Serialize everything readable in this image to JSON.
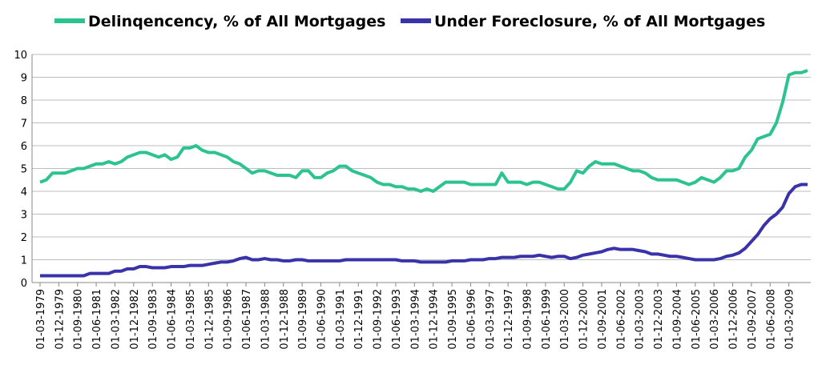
{
  "chart_data": {
    "type": "line",
    "categories": [
      "01-03-1979",
      null,
      null,
      "01-12-1979",
      null,
      null,
      "01-09-1980",
      null,
      null,
      "01-06-1981",
      null,
      null,
      "01-03-1982",
      null,
      null,
      "01-12-1982",
      null,
      null,
      "01-09-1983",
      null,
      null,
      "01-06-1984",
      null,
      null,
      "01-03-1985",
      null,
      null,
      "01-12-1985",
      null,
      null,
      "01-09-1986",
      null,
      null,
      "01-06-1987",
      null,
      null,
      "01-03-1988",
      null,
      null,
      "01-12-1988",
      null,
      null,
      "01-09-1989",
      null,
      null,
      "01-06-1990",
      null,
      null,
      "01-03-1991",
      null,
      null,
      "01-12-1991",
      null,
      null,
      "01-09-1992",
      null,
      null,
      "01-06-1993",
      null,
      null,
      "01-03-1994",
      null,
      null,
      "01-12-1994",
      null,
      null,
      "01-09-1995",
      null,
      null,
      "01-06-1996",
      null,
      null,
      "01-03-1997",
      null,
      null,
      "01-12-1997",
      null,
      null,
      "01-09-1998",
      null,
      null,
      "01-06-1999",
      null,
      null,
      "01-03-2000",
      null,
      null,
      "01-12-2000",
      null,
      null,
      "01-09-2001",
      null,
      null,
      "01-06-2002",
      null,
      null,
      "01-03-2003",
      null,
      null,
      "01-12-2003",
      null,
      null,
      "01-09-2004",
      null,
      null,
      "01-06-2005",
      null,
      null,
      "01-03-2006",
      null,
      null,
      "01-12-2006",
      null,
      null,
      "01-09-2007",
      null,
      null,
      "01-06-2008",
      null,
      null,
      "01-03-2009",
      null,
      null,
      null
    ],
    "series": [
      {
        "name": "Delinqencency, % of All Mortgages",
        "color": "#2dc391",
        "values": [
          4.4,
          4.5,
          4.8,
          4.8,
          4.8,
          4.9,
          5.0,
          5.0,
          5.1,
          5.2,
          5.2,
          5.3,
          5.2,
          5.3,
          5.5,
          5.6,
          5.7,
          5.7,
          5.6,
          5.5,
          5.6,
          5.4,
          5.5,
          5.9,
          5.9,
          6.0,
          5.8,
          5.7,
          5.7,
          5.6,
          5.5,
          5.3,
          5.2,
          5.0,
          4.8,
          4.9,
          4.9,
          4.8,
          4.7,
          4.7,
          4.7,
          4.6,
          4.9,
          4.9,
          4.6,
          4.6,
          4.8,
          4.9,
          5.1,
          5.1,
          4.9,
          4.8,
          4.7,
          4.6,
          4.4,
          4.3,
          4.3,
          4.2,
          4.2,
          4.1,
          4.1,
          4.0,
          4.1,
          4.0,
          4.2,
          4.4,
          4.4,
          4.4,
          4.4,
          4.3,
          4.3,
          4.3,
          4.3,
          4.3,
          4.8,
          4.4,
          4.4,
          4.4,
          4.3,
          4.4,
          4.4,
          4.3,
          4.2,
          4.1,
          4.1,
          4.4,
          4.9,
          4.8,
          5.1,
          5.3,
          5.2,
          5.2,
          5.2,
          5.1,
          5.0,
          4.9,
          4.9,
          4.8,
          4.6,
          4.5,
          4.5,
          4.5,
          4.5,
          4.4,
          4.3,
          4.4,
          4.6,
          4.5,
          4.4,
          4.6,
          4.9,
          4.9,
          5.0,
          5.5,
          5.8,
          6.3,
          6.4,
          6.5,
          7.0,
          7.9,
          9.1,
          9.2,
          9.2,
          9.3
        ]
      },
      {
        "name": "Under Foreclosure, % of All Mortgages",
        "color": "#3932a8",
        "values": [
          0.3,
          0.3,
          0.3,
          0.3,
          0.3,
          0.3,
          0.3,
          0.3,
          0.4,
          0.4,
          0.4,
          0.4,
          0.5,
          0.5,
          0.6,
          0.6,
          0.7,
          0.7,
          0.65,
          0.65,
          0.65,
          0.7,
          0.7,
          0.7,
          0.75,
          0.75,
          0.75,
          0.8,
          0.85,
          0.9,
          0.9,
          0.95,
          1.05,
          1.1,
          1.0,
          1.0,
          1.05,
          1.0,
          1.0,
          0.95,
          0.95,
          1.0,
          1.0,
          0.95,
          0.95,
          0.95,
          0.95,
          0.95,
          0.95,
          1.0,
          1.0,
          1.0,
          1.0,
          1.0,
          1.0,
          1.0,
          1.0,
          1.0,
          0.95,
          0.95,
          0.95,
          0.9,
          0.9,
          0.9,
          0.9,
          0.9,
          0.95,
          0.95,
          0.95,
          1.0,
          1.0,
          1.0,
          1.05,
          1.05,
          1.1,
          1.1,
          1.1,
          1.15,
          1.15,
          1.15,
          1.2,
          1.15,
          1.1,
          1.15,
          1.15,
          1.05,
          1.1,
          1.2,
          1.25,
          1.3,
          1.35,
          1.45,
          1.5,
          1.45,
          1.45,
          1.45,
          1.4,
          1.35,
          1.25,
          1.25,
          1.2,
          1.15,
          1.15,
          1.1,
          1.05,
          1.0,
          1.0,
          1.0,
          1.0,
          1.05,
          1.15,
          1.2,
          1.3,
          1.5,
          1.8,
          2.1,
          2.5,
          2.8,
          3.0,
          3.3,
          3.9,
          4.2,
          4.3,
          4.3
        ]
      }
    ],
    "ylim": [
      0,
      10
    ],
    "yticks": [
      0,
      1,
      2,
      3,
      4,
      5,
      6,
      7,
      8,
      9,
      10
    ],
    "grid": true,
    "legend": "top"
  }
}
